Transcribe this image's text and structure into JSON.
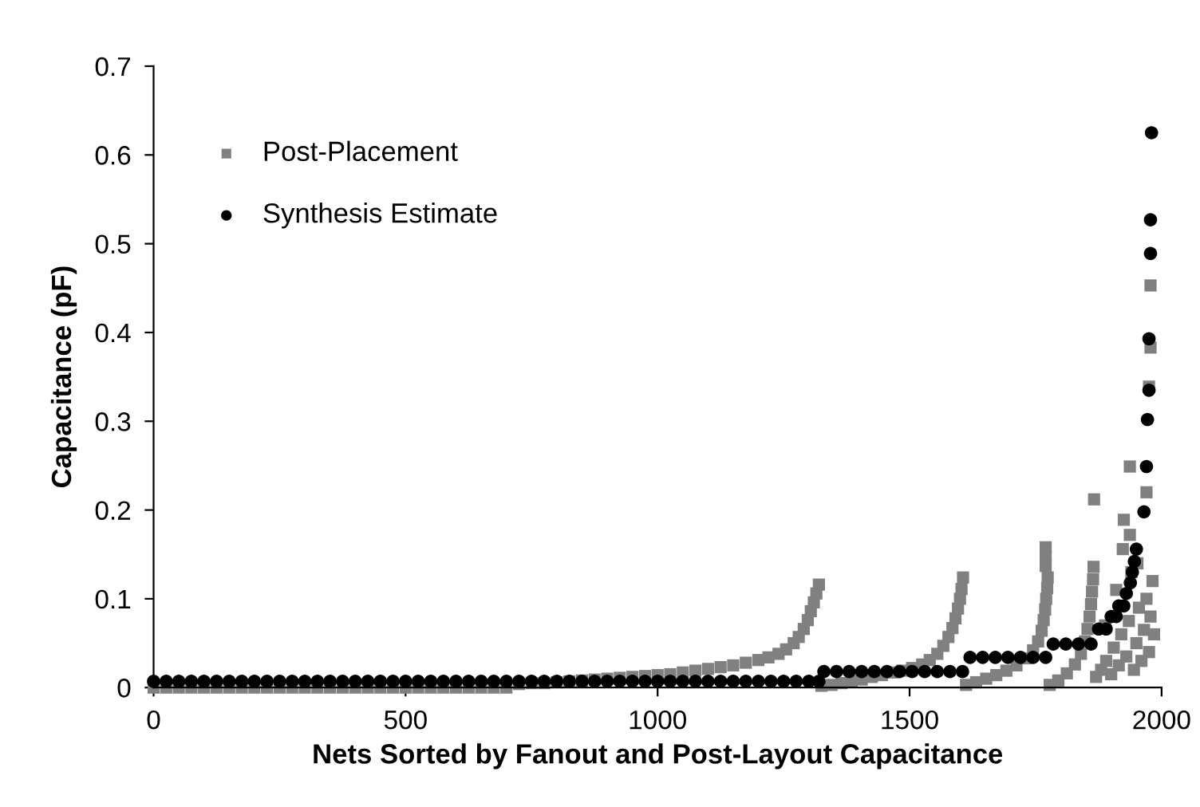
{
  "chart_data": {
    "type": "scatter",
    "xlabel": "Nets Sorted by Fanout and Post-Layout Capacitance",
    "ylabel": "Capacitance (pF)",
    "xlim": [
      0,
      2000
    ],
    "xticks": [
      0,
      500,
      1000,
      1500,
      2000
    ],
    "ylim": [
      0,
      0.7
    ],
    "yticks": [
      0,
      0.1,
      0.2,
      0.3,
      0.4,
      0.5,
      0.6,
      0.7
    ],
    "grid": false,
    "legend": "top left",
    "series": [
      {
        "name": "Post-Placement",
        "color": "#808080",
        "marker": "square",
        "x": [
          0,
          25,
          50,
          75,
          100,
          125,
          150,
          175,
          200,
          225,
          250,
          275,
          300,
          325,
          350,
          375,
          400,
          425,
          450,
          475,
          500,
          525,
          550,
          575,
          600,
          625,
          650,
          675,
          700,
          725,
          750,
          775,
          800,
          825,
          850,
          875,
          900,
          925,
          950,
          975,
          1000,
          1025,
          1050,
          1075,
          1100,
          1125,
          1150,
          1175,
          1200,
          1220,
          1240,
          1255,
          1270,
          1280,
          1290,
          1298,
          1304,
          1310,
          1315,
          1320,
          1325,
          1345,
          1365,
          1385,
          1405,
          1425,
          1445,
          1465,
          1485,
          1505,
          1525,
          1540,
          1555,
          1567,
          1577,
          1585,
          1591,
          1596,
          1600,
          1603,
          1606,
          1612,
          1632,
          1652,
          1672,
          1692,
          1712,
          1730,
          1745,
          1755,
          1762,
          1766,
          1769,
          1771,
          1773,
          1774,
          1770,
          1770,
          1770,
          1778,
          1795,
          1812,
          1828,
          1840,
          1848,
          1853,
          1857,
          1860,
          1862,
          1864,
          1865,
          1870,
          1880,
          1890,
          1900,
          1905,
          1915,
          1920,
          1930,
          1935,
          1945,
          1950,
          1955,
          1960,
          1965,
          1970,
          1975,
          1978,
          1982,
          1866,
          1937,
          1925,
          1923,
          1970,
          1937,
          1975,
          1978,
          1978,
          1985,
          1888,
          1910,
          1940,
          1952
        ],
        "values": [
          0,
          0,
          0,
          0,
          0,
          0,
          0,
          0,
          0,
          0,
          0,
          0,
          0,
          0,
          0,
          0,
          0,
          0,
          0,
          0,
          0,
          0,
          0,
          0,
          0,
          0,
          0,
          0,
          0,
          0.004,
          0.005,
          0.005,
          0.006,
          0.007,
          0.008,
          0.009,
          0.01,
          0.011,
          0.012,
          0.013,
          0.014,
          0.015,
          0.017,
          0.019,
          0.021,
          0.023,
          0.025,
          0.028,
          0.031,
          0.034,
          0.038,
          0.043,
          0.05,
          0.057,
          0.066,
          0.076,
          0.086,
          0.096,
          0.106,
          0.116,
          0.002,
          0.003,
          0.005,
          0.007,
          0.009,
          0.012,
          0.014,
          0.017,
          0.019,
          0.022,
          0.026,
          0.031,
          0.038,
          0.047,
          0.057,
          0.067,
          0.078,
          0.089,
          0.1,
          0.111,
          0.124,
          0.003,
          0.006,
          0.01,
          0.014,
          0.019,
          0.025,
          0.033,
          0.042,
          0.052,
          0.064,
          0.076,
          0.088,
          0.1,
          0.112,
          0.124,
          0.137,
          0.148,
          0.158,
          0.003,
          0.008,
          0.016,
          0.026,
          0.038,
          0.052,
          0.066,
          0.08,
          0.094,
          0.108,
          0.122,
          0.136,
          0.012,
          0.02,
          0.03,
          0.015,
          0.045,
          0.025,
          0.06,
          0.035,
          0.075,
          0.02,
          0.05,
          0.09,
          0.03,
          0.065,
          0.1,
          0.04,
          0.08,
          0.12,
          0.212,
          0.172,
          0.189,
          0.156,
          0.22,
          0.249,
          0.339,
          0.383,
          0.453,
          0.06,
          0.07,
          0.11,
          0.13,
          0.14
        ]
      },
      {
        "name": "Synthesis Estimate",
        "color": "#000000",
        "marker": "circle",
        "x": [
          0,
          25,
          50,
          75,
          100,
          125,
          150,
          175,
          200,
          225,
          250,
          275,
          300,
          325,
          350,
          375,
          400,
          425,
          450,
          475,
          500,
          525,
          550,
          575,
          600,
          625,
          650,
          675,
          700,
          725,
          750,
          775,
          800,
          825,
          850,
          875,
          900,
          925,
          950,
          975,
          1000,
          1025,
          1050,
          1075,
          1100,
          1125,
          1150,
          1175,
          1200,
          1225,
          1250,
          1275,
          1300,
          1320,
          1330,
          1355,
          1380,
          1405,
          1430,
          1455,
          1480,
          1505,
          1530,
          1555,
          1580,
          1605,
          1620,
          1645,
          1670,
          1695,
          1720,
          1745,
          1770,
          1785,
          1810,
          1835,
          1860,
          1875,
          1890,
          1900,
          1910,
          1915,
          1925,
          1930,
          1938,
          1942,
          1946,
          1950,
          1965,
          1970,
          1972,
          1975,
          1975,
          1978,
          1978,
          1980
        ],
        "values": [
          0.007,
          0.007,
          0.007,
          0.007,
          0.007,
          0.007,
          0.007,
          0.007,
          0.007,
          0.007,
          0.007,
          0.007,
          0.007,
          0.007,
          0.007,
          0.007,
          0.007,
          0.007,
          0.007,
          0.007,
          0.007,
          0.007,
          0.007,
          0.007,
          0.007,
          0.007,
          0.007,
          0.007,
          0.007,
          0.007,
          0.007,
          0.007,
          0.007,
          0.007,
          0.007,
          0.007,
          0.007,
          0.007,
          0.007,
          0.007,
          0.007,
          0.007,
          0.007,
          0.007,
          0.007,
          0.007,
          0.007,
          0.007,
          0.007,
          0.007,
          0.007,
          0.007,
          0.007,
          0.007,
          0.018,
          0.018,
          0.018,
          0.018,
          0.018,
          0.018,
          0.018,
          0.018,
          0.018,
          0.018,
          0.018,
          0.018,
          0.034,
          0.034,
          0.034,
          0.034,
          0.034,
          0.034,
          0.034,
          0.049,
          0.049,
          0.049,
          0.049,
          0.066,
          0.066,
          0.08,
          0.08,
          0.092,
          0.092,
          0.106,
          0.118,
          0.13,
          0.142,
          0.156,
          0.198,
          0.249,
          0.302,
          0.335,
          0.393,
          0.489,
          0.527,
          0.625
        ]
      }
    ]
  }
}
